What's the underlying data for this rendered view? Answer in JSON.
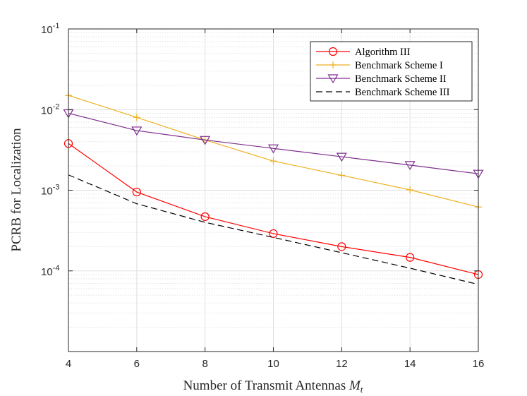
{
  "chart_data": {
    "type": "line",
    "title": "",
    "xlabel": "Number of Transmit Antennas ",
    "xlabel_symbol": "M",
    "xlabel_subscript": "t",
    "ylabel": "PCRB for Localization",
    "yscale": "log",
    "xlim": [
      4,
      16
    ],
    "ylim": [
      1e-05,
      0.1
    ],
    "grid": true,
    "legend_position": "top-right",
    "x": [
      4,
      6,
      8,
      10,
      12,
      14,
      16
    ],
    "x_tick_labels": [
      "4",
      "6",
      "8",
      "10",
      "12",
      "14",
      "16"
    ],
    "y_ticks": [
      {
        "value": 0.0001,
        "base": "10",
        "exp": "-4"
      },
      {
        "value": 0.001,
        "base": "10",
        "exp": "-3"
      },
      {
        "value": 0.01,
        "base": "10",
        "exp": "-2"
      },
      {
        "value": 0.1,
        "base": "10",
        "exp": "-1"
      }
    ],
    "series": [
      {
        "name": "Algorithm III",
        "color": "#ff0000",
        "marker": "circle",
        "dash": "solid",
        "values": [
          0.0038,
          0.00095,
          0.00047,
          0.00029,
          0.0002,
          0.000147,
          9e-05
        ]
      },
      {
        "name": "Benchmark Scheme I",
        "color": "#edb120",
        "marker": "plus",
        "dash": "solid",
        "values": [
          0.015,
          0.008,
          0.0042,
          0.0023,
          0.00153,
          0.00101,
          0.00062
        ]
      },
      {
        "name": "Benchmark Scheme II",
        "color": "#7e2f8e",
        "marker": "triangle-down",
        "dash": "solid",
        "values": [
          0.009,
          0.0055,
          0.0042,
          0.0033,
          0.0026,
          0.00205,
          0.0016
        ]
      },
      {
        "name": "Benchmark Scheme III",
        "color": "#000000",
        "marker": "none",
        "dash": "dashed",
        "values": [
          0.00155,
          0.00068,
          0.0004,
          0.00026,
          0.000168,
          0.000108,
          6.8e-05
        ]
      }
    ]
  }
}
